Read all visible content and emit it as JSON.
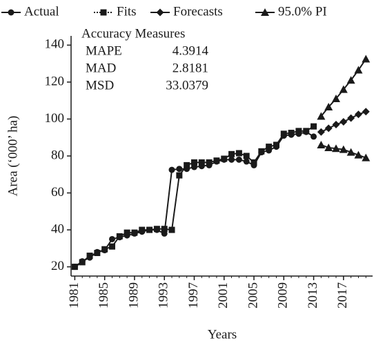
{
  "chart_data": {
    "type": "line",
    "x_label": "Years",
    "y_label": "Area (‘000’ ha)",
    "xlim": [
      1980.5,
      2020.9
    ],
    "ylim": [
      15,
      145
    ],
    "xticks": [
      1981,
      1985,
      1989,
      1993,
      1997,
      2001,
      2005,
      2009,
      2013,
      2017
    ],
    "yticks": [
      20,
      40,
      60,
      80,
      100,
      120,
      140
    ],
    "grid": false,
    "accuracy": {
      "title": "Accuracy Measures",
      "rows": [
        [
          "MAPE",
          4.3914
        ],
        [
          "MAD",
          2.8181
        ],
        [
          "MSD",
          33.0379
        ]
      ]
    },
    "series": [
      {
        "name": "Actual",
        "color": "#1a1a1a",
        "marker": "circle",
        "x": [
          1981,
          1982,
          1983,
          1984,
          1985,
          1986,
          1987,
          1988,
          1989,
          1990,
          1991,
          1992,
          1993,
          1994,
          1995,
          1996,
          1997,
          1998,
          1999,
          2000,
          2001,
          2002,
          2003,
          2004,
          2005,
          2006,
          2007,
          2008,
          2009,
          2010,
          2011,
          2012,
          2013
        ],
        "values": [
          20,
          23,
          25,
          28,
          29,
          35,
          36,
          37,
          38,
          39,
          40,
          40,
          38,
          72.5,
          73,
          73,
          74,
          74.5,
          75,
          77,
          78,
          78,
          78,
          77,
          75,
          82,
          83,
          85,
          91,
          91.5,
          92,
          93,
          90.5
        ]
      },
      {
        "name": "Fits",
        "color": "#1a1a1a",
        "marker": "square",
        "x": [
          1981,
          1982,
          1983,
          1984,
          1985,
          1986,
          1987,
          1988,
          1989,
          1990,
          1991,
          1992,
          1993,
          1994,
          1995,
          1996,
          1997,
          1998,
          1999,
          2000,
          2001,
          2002,
          2003,
          2004,
          2005,
          2006,
          2007,
          2008,
          2009,
          2010,
          2011,
          2012,
          2013
        ],
        "values": [
          20,
          22.5,
          26,
          27.5,
          29.5,
          31,
          36.5,
          38.5,
          38.5,
          40,
          40,
          40.5,
          40.5,
          40,
          69.5,
          75,
          76.5,
          76.5,
          76.5,
          77.5,
          78.5,
          81,
          81.5,
          80,
          76.5,
          82.5,
          85,
          86,
          92,
          92.5,
          93.5,
          93.5,
          96
        ]
      },
      {
        "name": "Forecasts",
        "color": "#1a1a1a",
        "marker": "diamond",
        "x": [
          2014,
          2015,
          2016,
          2017,
          2018,
          2019,
          2020
        ],
        "values": [
          93,
          95,
          97,
          98.5,
          100.5,
          102.5,
          104
        ]
      },
      {
        "name": "95.0% PI",
        "color": "#1a1a1a",
        "marker": "triangle",
        "x": [
          2014,
          2015,
          2016,
          2017,
          2018,
          2019,
          2020
        ],
        "values": [
          101.5,
          106.5,
          111,
          116,
          121,
          126.5,
          132.5
        ],
        "lower": [
          86,
          84.5,
          84,
          83.5,
          82,
          80.5,
          79
        ]
      }
    ]
  }
}
